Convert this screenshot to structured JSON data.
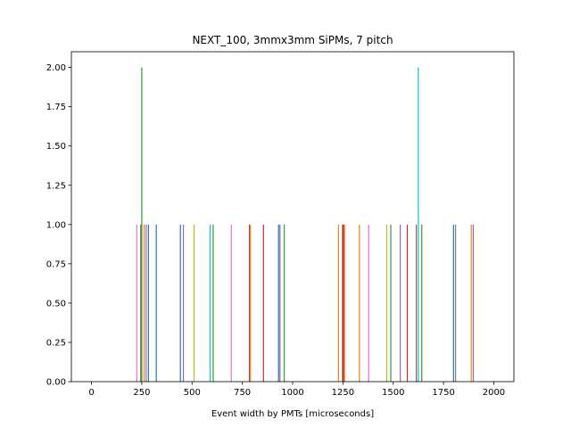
{
  "chart_data": {
    "type": "bar",
    "title": "NEXT_100, 3mmx3mm SiPMs, 7 pitch",
    "xlabel": "Event width by PMTs [microseconds]",
    "ylabel": "",
    "xlim": [
      -100,
      2100
    ],
    "ylim": [
      0,
      2.1
    ],
    "xticks": [
      0,
      250,
      500,
      750,
      1000,
      1250,
      1500,
      1750,
      2000
    ],
    "yticks": [
      0.0,
      0.25,
      0.5,
      0.75,
      1.0,
      1.25,
      1.5,
      1.75,
      2.0
    ],
    "xtick_labels": [
      "0",
      "250",
      "500",
      "750",
      "1000",
      "1250",
      "1500",
      "1750",
      "2000"
    ],
    "ytick_labels": [
      "0.00",
      "0.25",
      "0.50",
      "0.75",
      "1.00",
      "1.25",
      "1.50",
      "1.75",
      "2.00"
    ],
    "grid": false,
    "legend": "none",
    "bars": [
      {
        "x": 225,
        "value": 1,
        "color": "#e377c2"
      },
      {
        "x": 245,
        "value": 1,
        "color": "#8c564b"
      },
      {
        "x": 250,
        "value": 2,
        "color": "#2ca02c"
      },
      {
        "x": 262,
        "value": 1,
        "color": "#ff7f0e"
      },
      {
        "x": 272,
        "value": 1,
        "color": "#9467bd"
      },
      {
        "x": 283,
        "value": 1,
        "color": "#1f77b4"
      },
      {
        "x": 322,
        "value": 1,
        "color": "#1f77b4"
      },
      {
        "x": 442,
        "value": 1,
        "color": "#1f77b4"
      },
      {
        "x": 457,
        "value": 1,
        "color": "#9467bd"
      },
      {
        "x": 510,
        "value": 1,
        "color": "#bcbd22"
      },
      {
        "x": 590,
        "value": 1,
        "color": "#17becf"
      },
      {
        "x": 605,
        "value": 1,
        "color": "#2ca02c"
      },
      {
        "x": 695,
        "value": 1,
        "color": "#e377c2"
      },
      {
        "x": 785,
        "value": 1,
        "color": "#8c564b"
      },
      {
        "x": 790,
        "value": 1,
        "color": "#ff7f0e"
      },
      {
        "x": 855,
        "value": 1,
        "color": "#d62728"
      },
      {
        "x": 930,
        "value": 1,
        "color": "#1f77b4"
      },
      {
        "x": 937,
        "value": 1,
        "color": "#9467bd"
      },
      {
        "x": 958,
        "value": 1,
        "color": "#2ca02c"
      },
      {
        "x": 1228,
        "value": 1,
        "color": "#ff7f0e"
      },
      {
        "x": 1248,
        "value": 1,
        "color": "#8c564b"
      },
      {
        "x": 1253,
        "value": 1,
        "color": "#d62728"
      },
      {
        "x": 1258,
        "value": 1,
        "color": "#ff7f0e"
      },
      {
        "x": 1332,
        "value": 1,
        "color": "#ff7f0e"
      },
      {
        "x": 1378,
        "value": 1,
        "color": "#e377c2"
      },
      {
        "x": 1468,
        "value": 1,
        "color": "#bcbd22"
      },
      {
        "x": 1488,
        "value": 1,
        "color": "#2ca02c"
      },
      {
        "x": 1535,
        "value": 1,
        "color": "#9467bd"
      },
      {
        "x": 1570,
        "value": 1,
        "color": "#d62728"
      },
      {
        "x": 1615,
        "value": 1,
        "color": "#8c564b"
      },
      {
        "x": 1625,
        "value": 2,
        "color": "#17becf"
      },
      {
        "x": 1642,
        "value": 1,
        "color": "#2ca02c"
      },
      {
        "x": 1800,
        "value": 1,
        "color": "#1f77b4"
      },
      {
        "x": 1810,
        "value": 1,
        "color": "#7f7f7f"
      },
      {
        "x": 1888,
        "value": 1,
        "color": "#ff7f0e"
      },
      {
        "x": 1898,
        "value": 1,
        "color": "#9467bd"
      }
    ]
  }
}
